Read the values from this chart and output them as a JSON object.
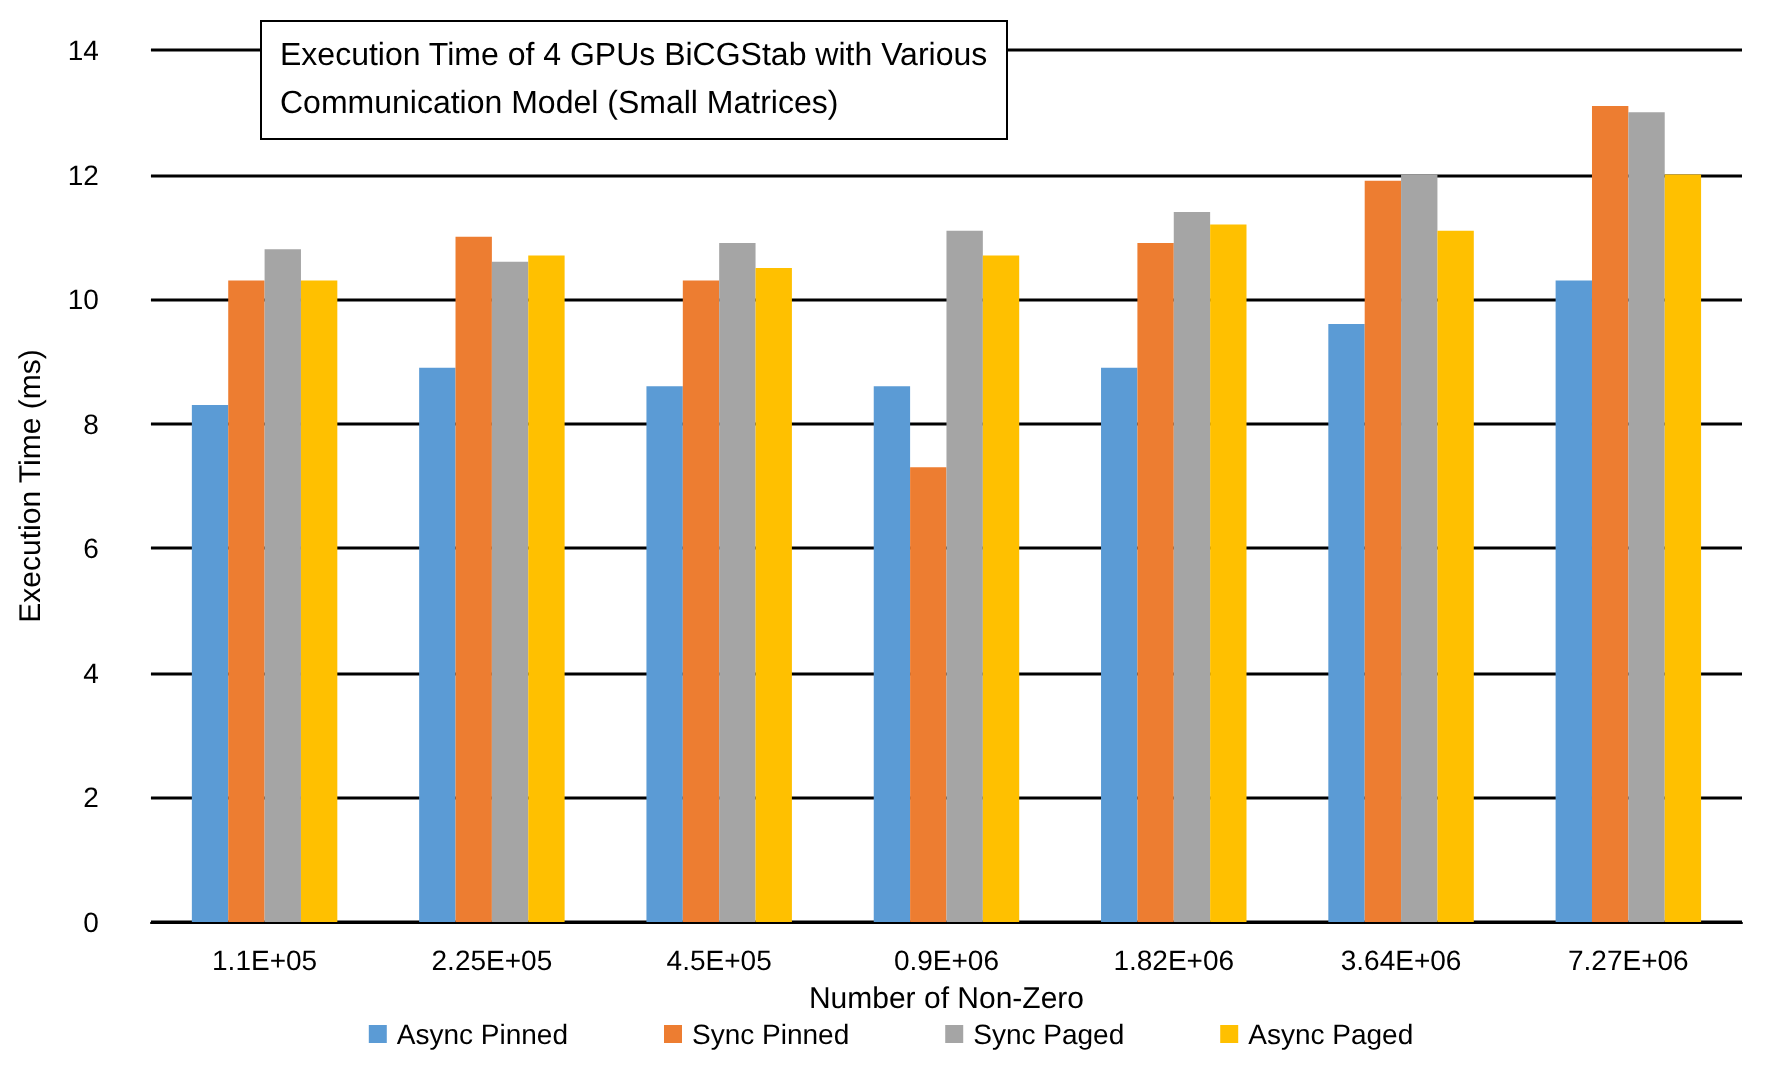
{
  "chart_data": {
    "type": "bar",
    "title": "Execution Time of 4 GPUs BiCGStab with Various\nCommunication Model (Small Matrices)",
    "xlabel": "Number of Non-Zero",
    "ylabel": "Execution Time (ms)",
    "categories": [
      "1.1E+05",
      "2.25E+05",
      "4.5E+05",
      "0.9E+06",
      "1.82E+06",
      "3.64E+06",
      "7.27E+06"
    ],
    "series": [
      {
        "name": "Async Pinned",
        "color": "#5b9bd5",
        "values": [
          8.3,
          8.9,
          8.6,
          8.6,
          8.9,
          9.6,
          10.3
        ]
      },
      {
        "name": "Sync Pinned",
        "color": "#ed7d31",
        "values": [
          10.3,
          11.0,
          10.3,
          7.3,
          10.9,
          11.9,
          13.1
        ]
      },
      {
        "name": "Sync Paged",
        "color": "#a5a5a5",
        "values": [
          10.8,
          10.6,
          10.9,
          11.1,
          11.4,
          12.0,
          13.0
        ]
      },
      {
        "name": "Async Paged",
        "color": "#ffc000",
        "values": [
          10.3,
          10.7,
          10.5,
          10.7,
          11.2,
          11.1,
          12.0
        ]
      }
    ],
    "ylim": [
      0,
      14
    ],
    "yticks": [
      0,
      2,
      4,
      6,
      8,
      10,
      12,
      14
    ],
    "grid": "y",
    "legend": "bottom"
  }
}
